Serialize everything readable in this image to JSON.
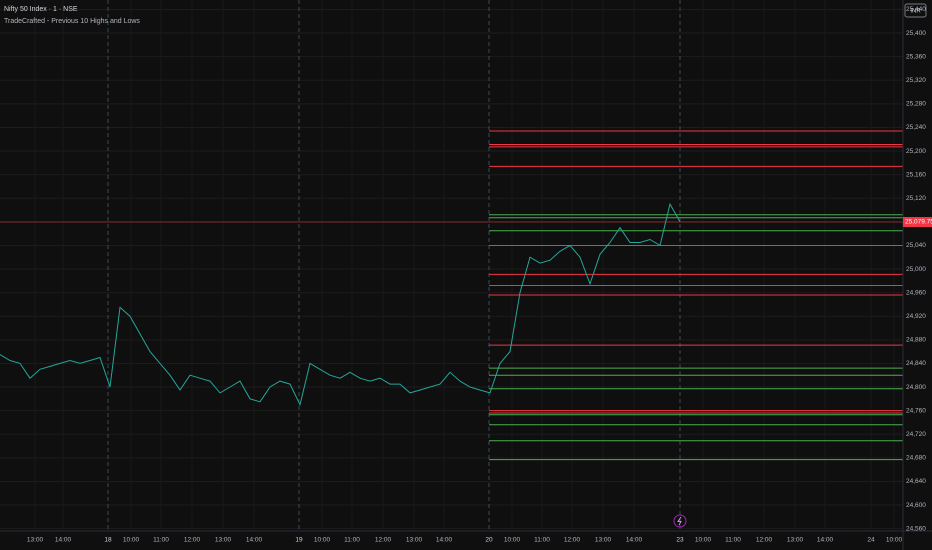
{
  "chart_data": {
    "type": "line",
    "title": "Nifty 50 Index · 1 · NSE",
    "subtitle": "TradeCrafted - Previous 10 Highs and Lows",
    "currency": "INR",
    "color": "#26a69a",
    "values": [
      24855,
      24845,
      24840,
      24815,
      24830,
      24835,
      24840,
      24845,
      24840,
      24845,
      24850,
      24800,
      24935,
      24920,
      24890,
      24860,
      24840,
      24820,
      24795,
      24820,
      24815,
      24810,
      24790,
      24800,
      24810,
      24780,
      24775,
      24800,
      24810,
      24805,
      24770,
      24840,
      24830,
      24820,
      24815,
      24825,
      24815,
      24810,
      24815,
      24805,
      24805,
      24790,
      24795,
      24800,
      24805,
      24825,
      24810,
      24800,
      24795,
      24790,
      24840,
      24860,
      24960,
      25020,
      25010,
      25015,
      25030,
      25040,
      25020,
      24975,
      25025,
      25045,
      25070,
      25045,
      25045,
      25050,
      25040,
      25110,
      25080
    ],
    "xlim": [
      0,
      90.3
    ],
    "xticks": [
      {
        "value": 3.5,
        "label": "13:00"
      },
      {
        "value": 6.3,
        "label": "14:00"
      },
      {
        "value": 10.8,
        "label": "18"
      },
      {
        "value": 13.1,
        "label": "10:00"
      },
      {
        "value": 16.1,
        "label": "11:00"
      },
      {
        "value": 19.2,
        "label": "12:00"
      },
      {
        "value": 22.3,
        "label": "13:00"
      },
      {
        "value": 25.4,
        "label": "14:00"
      },
      {
        "value": 29.9,
        "label": "19"
      },
      {
        "value": 32.2,
        "label": "10:00"
      },
      {
        "value": 35.2,
        "label": "11:00"
      },
      {
        "value": 38.3,
        "label": "12:00"
      },
      {
        "value": 41.4,
        "label": "13:00"
      },
      {
        "value": 44.4,
        "label": "14:00"
      },
      {
        "value": 48.9,
        "label": "20"
      },
      {
        "value": 51.2,
        "label": "10:00"
      },
      {
        "value": 54.2,
        "label": "11:00"
      },
      {
        "value": 57.2,
        "label": "12:00"
      },
      {
        "value": 60.3,
        "label": "13:00"
      },
      {
        "value": 63.4,
        "label": "14:00"
      },
      {
        "value": 68,
        "label": "23"
      },
      {
        "value": 70.3,
        "label": "10:00"
      },
      {
        "value": 73.3,
        "label": "11:00"
      },
      {
        "value": 76.4,
        "label": "12:00"
      },
      {
        "value": 79.5,
        "label": "13:00"
      },
      {
        "value": 82.5,
        "label": "14:00"
      },
      {
        "value": 87.1,
        "label": "24"
      },
      {
        "value": 89.4,
        "label": "10:00"
      }
    ],
    "day_ticks": [
      "18",
      "19",
      "20",
      "23"
    ],
    "ylim": [
      24556,
      25456
    ],
    "yticks": [
      {
        "value": 24560,
        "label": "24,560"
      },
      {
        "value": 24600,
        "label": "24,600"
      },
      {
        "value": 24640,
        "label": "24,640"
      },
      {
        "value": 24680,
        "label": "24,680"
      },
      {
        "value": 24720,
        "label": "24,720"
      },
      {
        "value": 24760,
        "label": "24,760"
      },
      {
        "value": 24800,
        "label": "24,800"
      },
      {
        "value": 24840,
        "label": "24,840"
      },
      {
        "value": 24880,
        "label": "24,880"
      },
      {
        "value": 24920,
        "label": "24,920"
      },
      {
        "value": 24960,
        "label": "24,960"
      },
      {
        "value": 25000,
        "label": "25,000"
      },
      {
        "value": 25040,
        "label": "25,040"
      },
      {
        "value": 25080,
        "label": "25,080"
      },
      {
        "value": 25120,
        "label": "25,120"
      },
      {
        "value": 25160,
        "label": "25,160"
      },
      {
        "value": 25200,
        "label": "25,200"
      },
      {
        "value": 25240,
        "label": "25,240"
      },
      {
        "value": 25280,
        "label": "25,280"
      },
      {
        "value": 25320,
        "label": "25,320"
      },
      {
        "value": 25360,
        "label": "25,360"
      },
      {
        "value": 25400,
        "label": "25,400"
      },
      {
        "value": 25440,
        "label": "25,440"
      }
    ],
    "grid": true,
    "current_price": {
      "value": 25079.75,
      "label": "25,079.75",
      "color": "#f23645"
    },
    "levels_start": 48.9,
    "levels": [
      {
        "value": 25234,
        "color": "#f23645"
      },
      {
        "value": 25211,
        "color": "#f23645"
      },
      {
        "value": 25207,
        "color": "#f23645"
      },
      {
        "value": 25174,
        "color": "#f23645"
      },
      {
        "value": 25040,
        "color": "#f23645"
      },
      {
        "value": 24991,
        "color": "#f23645"
      },
      {
        "value": 24972,
        "color": "#f23645"
      },
      {
        "value": 24956,
        "color": "#f23645"
      },
      {
        "value": 24871,
        "color": "#f23645"
      },
      {
        "value": 24760,
        "color": "#f23645"
      },
      {
        "value": 24756,
        "color": "#f23645"
      },
      {
        "value": 25092,
        "color": "#4caf50"
      },
      {
        "value": 25087,
        "color": "#4caf50"
      },
      {
        "value": 25065,
        "color": "#4caf50"
      },
      {
        "value": 24832,
        "color": "#4caf50"
      },
      {
        "value": 24820,
        "color": "#4caf50"
      },
      {
        "value": 24797,
        "color": "#4caf50"
      },
      {
        "value": 24753,
        "color": "#4caf50"
      },
      {
        "value": 24736,
        "color": "#4caf50"
      },
      {
        "value": 24709,
        "color": "#4caf50"
      },
      {
        "value": 24677,
        "color": "#4caf50"
      }
    ]
  }
}
